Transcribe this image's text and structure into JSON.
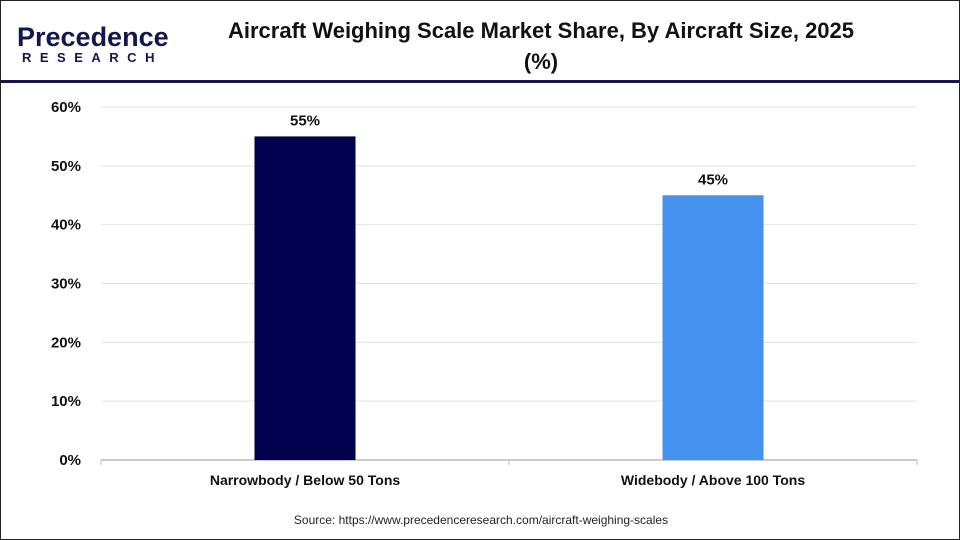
{
  "logo": {
    "line1": "Precedence",
    "line2": "RESEARCH"
  },
  "title": "Aircraft Weighing Scale Market Share, By Aircraft Size, 2025 (%)",
  "source": "Source: https://www.precedenceresearch.com/aircraft-weighing-scales",
  "chart_data": {
    "type": "bar",
    "title": "Aircraft Weighing Scale Market Share, By Aircraft Size, 2025 (%)",
    "categories": [
      "Narrowbody / Below 50 Tons",
      "Widebody / Above 100 Tons"
    ],
    "values": [
      55,
      45
    ],
    "data_labels": [
      "55%",
      "45%"
    ],
    "colors": [
      "#00004d",
      "#4592ee"
    ],
    "ylim": [
      0,
      60
    ],
    "yticks": [
      "0%",
      "10%",
      "20%",
      "30%",
      "40%",
      "50%",
      "60%"
    ],
    "grid": true,
    "xlabel": "",
    "ylabel": ""
  }
}
